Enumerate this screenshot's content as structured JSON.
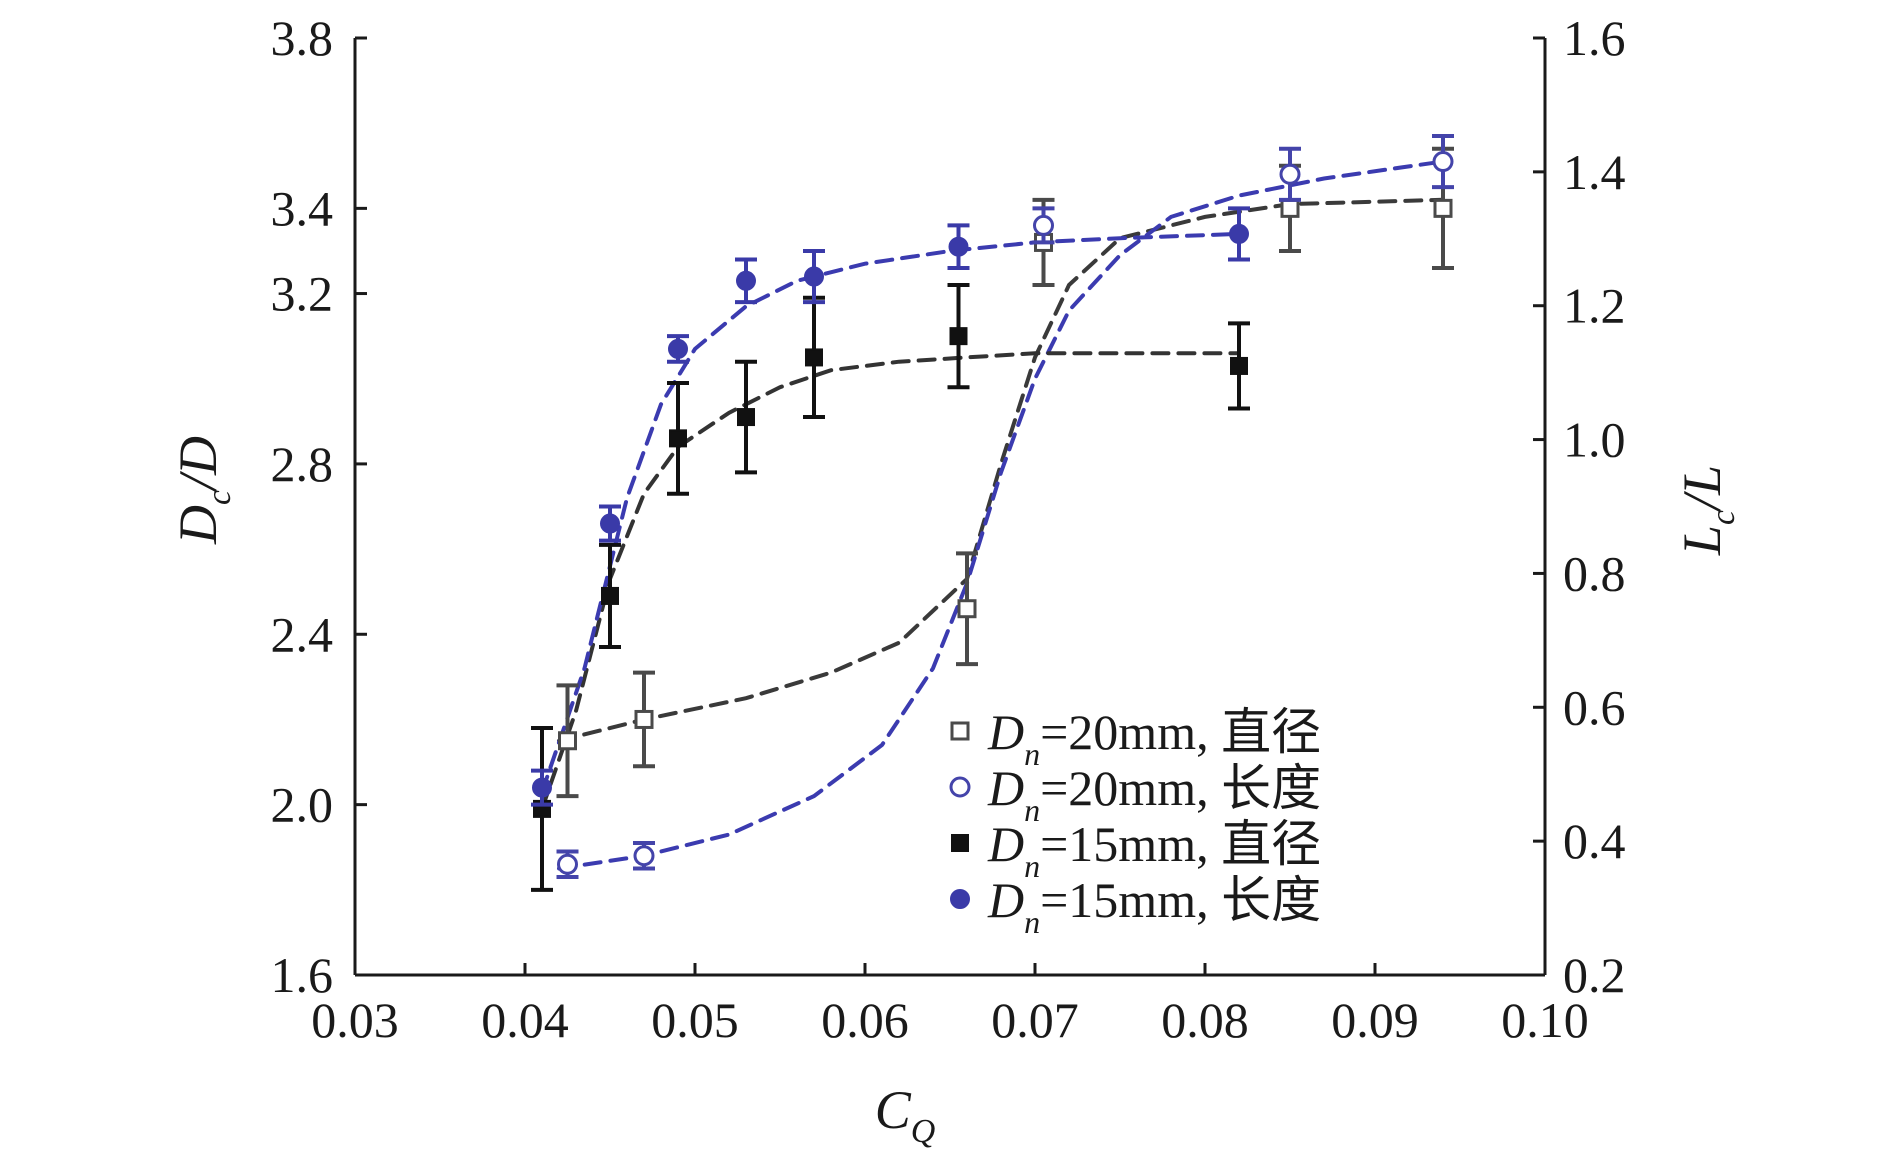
{
  "chart_data": {
    "type": "scatter",
    "x_label": {
      "main": "C",
      "sub": "Q"
    },
    "y_label_left": {
      "main": "D",
      "sub": "c",
      "rest": "/D"
    },
    "y_label_right": {
      "main": "L",
      "sub": "c",
      "rest": "/L"
    },
    "xlim": [
      0.03,
      0.1
    ],
    "ylim_left": [
      1.6,
      3.8
    ],
    "ylim_right": [
      0.2,
      1.6
    ],
    "x_ticks": [
      "0.03",
      "0.04",
      "0.05",
      "0.06",
      "0.07",
      "0.08",
      "0.09",
      "0.10"
    ],
    "y_ticks_left": [
      "1.6",
      "2.0",
      "2.4",
      "2.8",
      "3.2",
      "3.4",
      "3.8"
    ],
    "y_ticks_left_values": [
      1.6,
      2.0,
      2.4,
      2.8,
      3.2,
      3.4,
      3.8
    ],
    "y_ticks_right": [
      "0.2",
      "0.4",
      "0.6",
      "0.8",
      "1.0",
      "1.2",
      "1.4",
      "1.6"
    ],
    "legend_position": "bottom-right",
    "series": [
      {
        "name": "D n=20mm, 直径",
        "legend": {
          "sym": "D",
          "sub": "n",
          "text": "=20mm, 直径"
        },
        "axis": "left",
        "marker": "square-open",
        "color": "#4a4a4a",
        "curve_color": "#3a3a3a",
        "points": [
          {
            "x": 0.0425,
            "y": 2.15,
            "err": 0.13
          },
          {
            "x": 0.047,
            "y": 2.2,
            "err": 0.11
          },
          {
            "x": 0.066,
            "y": 2.46,
            "err": 0.13
          },
          {
            "x": 0.0705,
            "y": 3.32,
            "err": 0.1
          },
          {
            "x": 0.085,
            "y": 3.4,
            "err": 0.1
          },
          {
            "x": 0.094,
            "y": 3.4,
            "err": 0.14
          }
        ],
        "curve": [
          [
            0.042,
            2.15
          ],
          [
            0.047,
            2.2
          ],
          [
            0.053,
            2.25
          ],
          [
            0.058,
            2.31
          ],
          [
            0.062,
            2.38
          ],
          [
            0.066,
            2.53
          ],
          [
            0.068,
            2.8
          ],
          [
            0.07,
            3.05
          ],
          [
            0.072,
            3.22
          ],
          [
            0.075,
            3.33
          ],
          [
            0.08,
            3.38
          ],
          [
            0.085,
            3.41
          ],
          [
            0.094,
            3.42
          ]
        ]
      },
      {
        "name": "D n=20mm, 长度",
        "legend": {
          "sym": "D",
          "sub": "n",
          "text": "=20mm, 长度"
        },
        "axis": "left",
        "marker": "circle-open",
        "color": "#4444aa",
        "curve_color": "#3b3bb0",
        "points": [
          {
            "x": 0.0425,
            "y": 1.86,
            "err": 0.03
          },
          {
            "x": 0.047,
            "y": 1.88,
            "err": 0.03
          },
          {
            "x": 0.0705,
            "y": 3.36,
            "err": 0.04
          },
          {
            "x": 0.085,
            "y": 3.48,
            "err": 0.06
          },
          {
            "x": 0.094,
            "y": 3.51,
            "err": 0.06
          }
        ],
        "curve": [
          [
            0.042,
            1.85
          ],
          [
            0.047,
            1.88
          ],
          [
            0.052,
            1.93
          ],
          [
            0.057,
            2.02
          ],
          [
            0.061,
            2.14
          ],
          [
            0.064,
            2.32
          ],
          [
            0.066,
            2.52
          ],
          [
            0.068,
            2.78
          ],
          [
            0.07,
            3.0
          ],
          [
            0.072,
            3.16
          ],
          [
            0.075,
            3.29
          ],
          [
            0.078,
            3.38
          ],
          [
            0.082,
            3.43
          ],
          [
            0.087,
            3.47
          ],
          [
            0.094,
            3.51
          ]
        ]
      },
      {
        "name": "D n=15mm, 直径",
        "legend": {
          "sym": "D",
          "sub": "n",
          "text": "=15mm, 直径"
        },
        "axis": "left",
        "marker": "square-filled",
        "color": "#111111",
        "curve_color": "#333333",
        "points": [
          {
            "x": 0.041,
            "y": 1.99,
            "err": 0.19
          },
          {
            "x": 0.045,
            "y": 2.49,
            "err": 0.12
          },
          {
            "x": 0.049,
            "y": 2.86,
            "err": 0.13
          },
          {
            "x": 0.053,
            "y": 2.91,
            "err": 0.13
          },
          {
            "x": 0.057,
            "y": 3.05,
            "err": 0.14
          },
          {
            "x": 0.0655,
            "y": 3.1,
            "err": 0.12
          },
          {
            "x": 0.082,
            "y": 3.03,
            "err": 0.1
          }
        ],
        "curve": [
          [
            0.041,
            1.99
          ],
          [
            0.043,
            2.22
          ],
          [
            0.045,
            2.53
          ],
          [
            0.047,
            2.73
          ],
          [
            0.049,
            2.84
          ],
          [
            0.052,
            2.92
          ],
          [
            0.055,
            2.98
          ],
          [
            0.058,
            3.02
          ],
          [
            0.062,
            3.04
          ],
          [
            0.066,
            3.05
          ],
          [
            0.07,
            3.06
          ],
          [
            0.082,
            3.06
          ]
        ]
      },
      {
        "name": "D n=15mm, 长度",
        "legend": {
          "sym": "D",
          "sub": "n",
          "text": "=15mm, 长度"
        },
        "axis": "left",
        "marker": "circle-filled",
        "color": "#3a3aa8",
        "curve_color": "#3b3bb0",
        "points": [
          {
            "x": 0.041,
            "y": 2.04,
            "err": 0.04
          },
          {
            "x": 0.045,
            "y": 2.66,
            "err": 0.04
          },
          {
            "x": 0.049,
            "y": 3.07,
            "err": 0.03
          },
          {
            "x": 0.053,
            "y": 3.23,
            "err": 0.05
          },
          {
            "x": 0.057,
            "y": 3.24,
            "err": 0.06
          },
          {
            "x": 0.0655,
            "y": 3.31,
            "err": 0.05
          },
          {
            "x": 0.082,
            "y": 3.34,
            "err": 0.06
          }
        ],
        "curve": [
          [
            0.041,
            2.03
          ],
          [
            0.0435,
            2.32
          ],
          [
            0.046,
            2.72
          ],
          [
            0.048,
            2.94
          ],
          [
            0.05,
            3.07
          ],
          [
            0.053,
            3.17
          ],
          [
            0.056,
            3.23
          ],
          [
            0.06,
            3.27
          ],
          [
            0.065,
            3.3
          ],
          [
            0.07,
            3.32
          ],
          [
            0.075,
            3.33
          ],
          [
            0.082,
            3.34
          ]
        ]
      }
    ]
  }
}
